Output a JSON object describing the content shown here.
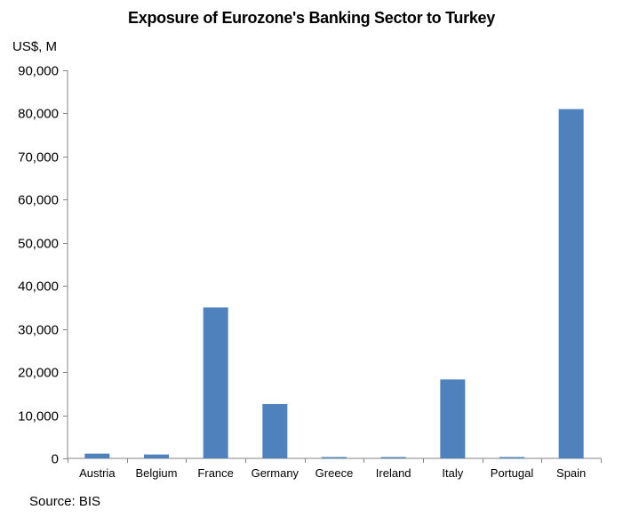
{
  "chart_data": {
    "type": "bar",
    "title": "Exposure of Eurozone's Banking Sector to Turkey",
    "ylabel": "US$, M",
    "xlabel": "",
    "source": "Source: BIS",
    "categories": [
      "Austria",
      "Belgium",
      "France",
      "Germany",
      "Greece",
      "Ireland",
      "Italy",
      "Portugal",
      "Spain"
    ],
    "values": [
      1100,
      900,
      35000,
      12600,
      300,
      300,
      18300,
      300,
      81000
    ],
    "ylim": [
      0,
      90000
    ],
    "yticks": [
      0,
      10000,
      20000,
      30000,
      40000,
      50000,
      60000,
      70000,
      80000,
      90000
    ],
    "ytick_labels": [
      "0",
      "10,000",
      "20,000",
      "30,000",
      "40,000",
      "50,000",
      "60,000",
      "70,000",
      "80,000",
      "90,000"
    ],
    "bar_color": "#4f81bd",
    "grid": false,
    "legend": "none"
  }
}
